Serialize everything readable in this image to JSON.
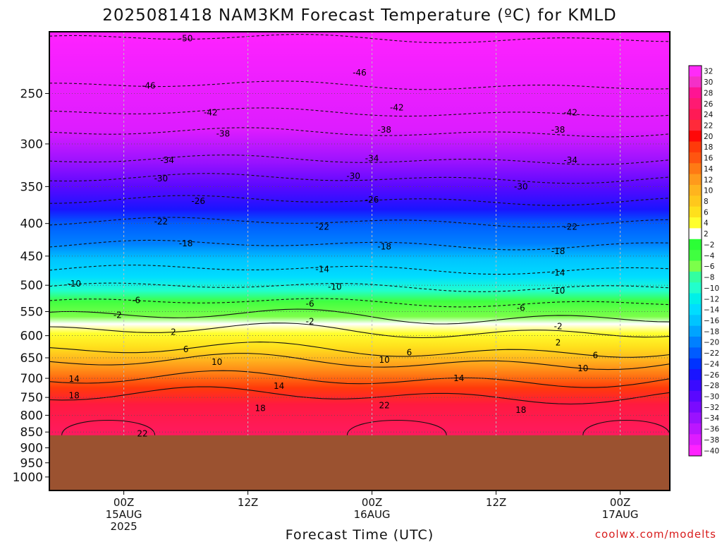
{
  "chart_data": {
    "type": "heatmap",
    "title": "2025081418 NAM3KM Forecast Temperature (ºC) for KMLD",
    "xlabel": "Forecast Time (UTC)",
    "ylabel": "",
    "credit": "coolwx.com/modelts",
    "y_axis": {
      "scale": "log",
      "inverted": true,
      "range": [
        1050,
        200
      ],
      "ticks": [
        250,
        300,
        350,
        400,
        450,
        500,
        550,
        600,
        650,
        700,
        750,
        800,
        850,
        900,
        950,
        1000
      ],
      "tick_labels": [
        "250",
        "300",
        "350",
        "400",
        "450",
        "500",
        "550",
        "600",
        "650",
        "700",
        "750",
        "800",
        "850",
        "900",
        "950",
        "1000"
      ]
    },
    "x_axis": {
      "range_hours": [
        -6,
        44
      ],
      "ticks": [
        {
          "hour": 0,
          "lines": [
            "00Z",
            "15AUG",
            "2025"
          ]
        },
        {
          "hour": 10,
          "lines": [
            "12Z"
          ]
        },
        {
          "hour": 20,
          "lines": [
            "00Z",
            "16AUG"
          ]
        },
        {
          "hour": 30,
          "lines": [
            "12Z"
          ]
        },
        {
          "hour": 40,
          "lines": [
            "00Z",
            "17AUG"
          ]
        }
      ]
    },
    "surface_pressure_hpa": 860,
    "surface_color": "#9b5230",
    "grid": true,
    "colorbar": {
      "placement": "right",
      "labels": [
        "32",
        "30",
        "28",
        "26",
        "24",
        "22",
        "20",
        "18",
        "16",
        "14",
        "12",
        "10",
        "8",
        "6",
        "4",
        "2",
        "−2",
        "−4",
        "−6",
        "−8",
        "−10",
        "−12",
        "−14",
        "−16",
        "−18",
        "−20",
        "−22",
        "−24",
        "−26",
        "−28",
        "−30",
        "−32",
        "−34",
        "−36",
        "−38",
        "−40"
      ],
      "colors": [
        "#ff2bf8",
        "#f430c8",
        "#ff1493",
        "#ff1a72",
        "#ff1a55",
        "#ff2a3a",
        "#ff0808",
        "#ff3a0a",
        "#ff5510",
        "#ff7a14",
        "#ff9a1c",
        "#ffb41e",
        "#ffc81c",
        "#ffe01c",
        "#ffff2e",
        "#ffffff",
        "#2bff36",
        "#40ff40",
        "#7cff4a",
        "#33ffa0",
        "#22ffcc",
        "#00f0e8",
        "#00ddff",
        "#00c4ff",
        "#00a4ff",
        "#0080ff",
        "#005cff",
        "#0033ff",
        "#1a14ff",
        "#3a0aff",
        "#5a08ff",
        "#7a0aff",
        "#9a12ff",
        "#bb16ff",
        "#dd1cff",
        "#ff22ff"
      ]
    },
    "contour_labels": [
      {
        "text": "-50",
        "hour": 5,
        "p": 205
      },
      {
        "text": "-46",
        "hour": 2,
        "p": 243
      },
      {
        "text": "-46",
        "hour": 19,
        "p": 232
      },
      {
        "text": "-42",
        "hour": 7,
        "p": 268
      },
      {
        "text": "-42",
        "hour": 22,
        "p": 263
      },
      {
        "text": "-42",
        "hour": 36,
        "p": 268
      },
      {
        "text": "-38",
        "hour": 8,
        "p": 289
      },
      {
        "text": "-38",
        "hour": 21,
        "p": 285
      },
      {
        "text": "-38",
        "hour": 35,
        "p": 285
      },
      {
        "text": "-34",
        "hour": 3.5,
        "p": 318
      },
      {
        "text": "-34",
        "hour": 20,
        "p": 316
      },
      {
        "text": "-34",
        "hour": 36,
        "p": 318
      },
      {
        "text": "-30",
        "hour": 3,
        "p": 340
      },
      {
        "text": "-30",
        "hour": 18.5,
        "p": 337
      },
      {
        "text": "-30",
        "hour": 32,
        "p": 350
      },
      {
        "text": "-26",
        "hour": 6,
        "p": 369
      },
      {
        "text": "-26",
        "hour": 20,
        "p": 367
      },
      {
        "text": "-22",
        "hour": 3,
        "p": 397
      },
      {
        "text": "-22",
        "hour": 16,
        "p": 405
      },
      {
        "text": "-22",
        "hour": 36,
        "p": 405
      },
      {
        "text": "-18",
        "hour": 5,
        "p": 430
      },
      {
        "text": "-18",
        "hour": 21,
        "p": 435
      },
      {
        "text": "-18",
        "hour": 35,
        "p": 442
      },
      {
        "text": "-14",
        "hour": 16,
        "p": 472
      },
      {
        "text": "-14",
        "hour": 35,
        "p": 478
      },
      {
        "text": "-10",
        "hour": -4,
        "p": 497
      },
      {
        "text": "-10",
        "hour": 17,
        "p": 503
      },
      {
        "text": "-10",
        "hour": 35,
        "p": 510
      },
      {
        "text": "-6",
        "hour": 1,
        "p": 528
      },
      {
        "text": "-6",
        "hour": 15,
        "p": 535
      },
      {
        "text": "-6",
        "hour": 32,
        "p": 543
      },
      {
        "text": "-2",
        "hour": -0.5,
        "p": 557
      },
      {
        "text": "-2",
        "hour": 15,
        "p": 570
      },
      {
        "text": "-2",
        "hour": 35,
        "p": 580
      },
      {
        "text": "2",
        "hour": 4,
        "p": 592
      },
      {
        "text": "2",
        "hour": 35,
        "p": 615
      },
      {
        "text": "6",
        "hour": 5,
        "p": 630
      },
      {
        "text": "6",
        "hour": 23,
        "p": 638
      },
      {
        "text": "6",
        "hour": 38,
        "p": 644
      },
      {
        "text": "10",
        "hour": 7.5,
        "p": 660
      },
      {
        "text": "10",
        "hour": 21,
        "p": 655
      },
      {
        "text": "10",
        "hour": 37,
        "p": 675
      },
      {
        "text": "14",
        "hour": -4,
        "p": 702
      },
      {
        "text": "14",
        "hour": 12.5,
        "p": 720
      },
      {
        "text": "14",
        "hour": 27,
        "p": 700
      },
      {
        "text": "18",
        "hour": -4,
        "p": 745
      },
      {
        "text": "18",
        "hour": 11,
        "p": 780
      },
      {
        "text": "18",
        "hour": 32,
        "p": 785
      },
      {
        "text": "22",
        "hour": 1.5,
        "p": 855
      },
      {
        "text": "22",
        "hour": 21,
        "p": 772
      }
    ]
  }
}
